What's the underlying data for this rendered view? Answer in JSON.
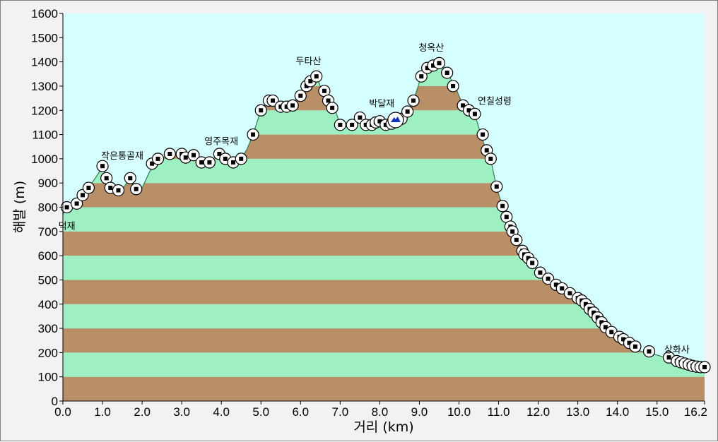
{
  "chart_data": {
    "type": "area",
    "xlabel": "거리  (km)",
    "ylabel": "해발 (m)",
    "xlim": [
      0,
      16.2
    ],
    "ylim": [
      0,
      1600
    ],
    "x_ticks": [
      "0.0",
      "1.0",
      "2.0",
      "3.0",
      "4.0",
      "5.0",
      "6.0",
      "7.0",
      "8.0",
      "9.0",
      "10.0",
      "11.0",
      "12.0",
      "13.0",
      "14.0",
      "15.0",
      "16.2"
    ],
    "y_ticks": [
      "0",
      "100",
      "200",
      "300",
      "400",
      "500",
      "600",
      "700",
      "800",
      "900",
      "1000",
      "1100",
      "1200",
      "1300",
      "1400",
      "1500",
      "1600"
    ],
    "band_colors": [
      "#b98f68",
      "#9ef0c2"
    ],
    "background_color": "#d6ffff",
    "profile": [
      [
        0.0,
        770
      ],
      [
        0.1,
        800
      ],
      [
        0.35,
        815
      ],
      [
        0.5,
        850
      ],
      [
        0.65,
        880
      ],
      [
        0.9,
        940
      ],
      [
        1.0,
        970
      ],
      [
        1.1,
        920
      ],
      [
        1.2,
        880
      ],
      [
        1.35,
        870
      ],
      [
        1.5,
        875
      ],
      [
        1.7,
        920
      ],
      [
        1.85,
        875
      ],
      [
        2.0,
        880
      ],
      [
        2.2,
        950
      ],
      [
        2.35,
        980
      ],
      [
        2.5,
        1000
      ],
      [
        2.75,
        1020
      ],
      [
        3.0,
        1030
      ],
      [
        3.2,
        1010
      ],
      [
        3.35,
        1015
      ],
      [
        3.5,
        990
      ],
      [
        3.7,
        985
      ],
      [
        3.9,
        1015
      ],
      [
        4.1,
        1000
      ],
      [
        4.3,
        985
      ],
      [
        4.5,
        1000
      ],
      [
        4.65,
        1040
      ],
      [
        4.8,
        1100
      ],
      [
        5.0,
        1200
      ],
      [
        5.2,
        1240
      ],
      [
        5.5,
        1215
      ],
      [
        5.8,
        1230
      ],
      [
        6.0,
        1260
      ],
      [
        6.2,
        1320
      ],
      [
        6.4,
        1340
      ],
      [
        6.55,
        1280
      ],
      [
        6.7,
        1240
      ],
      [
        6.85,
        1215
      ],
      [
        7.0,
        1140
      ],
      [
        7.3,
        1140
      ],
      [
        7.5,
        1165
      ],
      [
        7.7,
        1140
      ],
      [
        7.9,
        1140
      ],
      [
        8.1,
        1140
      ],
      [
        8.3,
        1145
      ],
      [
        8.5,
        1165
      ],
      [
        8.7,
        1190
      ],
      [
        8.85,
        1240
      ],
      [
        9.05,
        1340
      ],
      [
        9.25,
        1375
      ],
      [
        9.4,
        1390
      ],
      [
        9.55,
        1395
      ],
      [
        9.7,
        1355
      ],
      [
        9.9,
        1300
      ],
      [
        10.1,
        1220
      ],
      [
        10.25,
        1200
      ],
      [
        10.4,
        1185
      ],
      [
        10.55,
        1100
      ],
      [
        10.7,
        1030
      ],
      [
        10.8,
        1000
      ],
      [
        10.95,
        880
      ],
      [
        11.1,
        805
      ],
      [
        11.2,
        760
      ],
      [
        11.3,
        720
      ],
      [
        11.4,
        690
      ],
      [
        11.5,
        660
      ],
      [
        11.6,
        620
      ],
      [
        11.7,
        600
      ],
      [
        11.8,
        580
      ],
      [
        12.0,
        530
      ],
      [
        12.2,
        505
      ],
      [
        12.4,
        480
      ],
      [
        12.6,
        460
      ],
      [
        12.8,
        440
      ],
      [
        13.0,
        420
      ],
      [
        13.2,
        390
      ],
      [
        13.4,
        355
      ],
      [
        13.6,
        320
      ],
      [
        13.8,
        290
      ],
      [
        14.0,
        265
      ],
      [
        14.2,
        240
      ],
      [
        14.4,
        220
      ],
      [
        14.6,
        205
      ],
      [
        14.8,
        200
      ],
      [
        15.0,
        190
      ],
      [
        15.2,
        180
      ],
      [
        15.4,
        165
      ],
      [
        15.6,
        155
      ],
      [
        15.8,
        145
      ],
      [
        16.0,
        140
      ],
      [
        16.2,
        140
      ]
    ],
    "markers": [
      [
        0.1,
        800
      ],
      [
        0.35,
        815
      ],
      [
        0.5,
        850
      ],
      [
        0.65,
        880
      ],
      [
        1.0,
        970
      ],
      [
        1.1,
        920
      ],
      [
        1.2,
        880
      ],
      [
        1.4,
        870
      ],
      [
        1.7,
        920
      ],
      [
        1.85,
        875
      ],
      [
        2.25,
        980
      ],
      [
        2.4,
        1000
      ],
      [
        2.7,
        1020
      ],
      [
        3.0,
        1020
      ],
      [
        3.1,
        1005
      ],
      [
        3.3,
        1015
      ],
      [
        3.5,
        985
      ],
      [
        3.7,
        985
      ],
      [
        3.95,
        1020
      ],
      [
        4.1,
        1000
      ],
      [
        4.3,
        985
      ],
      [
        4.5,
        1000
      ],
      [
        4.8,
        1100
      ],
      [
        5.0,
        1200
      ],
      [
        5.2,
        1240
      ],
      [
        5.3,
        1240
      ],
      [
        5.5,
        1215
      ],
      [
        5.65,
        1215
      ],
      [
        5.8,
        1220
      ],
      [
        6.0,
        1260
      ],
      [
        6.15,
        1300
      ],
      [
        6.25,
        1320
      ],
      [
        6.4,
        1340
      ],
      [
        6.6,
        1280
      ],
      [
        6.7,
        1240
      ],
      [
        6.8,
        1210
      ],
      [
        7.0,
        1140
      ],
      [
        7.3,
        1140
      ],
      [
        7.5,
        1170
      ],
      [
        7.65,
        1140
      ],
      [
        7.8,
        1140
      ],
      [
        7.9,
        1150
      ],
      [
        8.0,
        1155
      ],
      [
        8.15,
        1140
      ],
      [
        8.3,
        1145
      ],
      [
        8.55,
        1165
      ],
      [
        8.7,
        1195
      ],
      [
        8.85,
        1240
      ],
      [
        9.05,
        1340
      ],
      [
        9.2,
        1375
      ],
      [
        9.35,
        1385
      ],
      [
        9.5,
        1395
      ],
      [
        9.7,
        1355
      ],
      [
        9.85,
        1300
      ],
      [
        10.1,
        1220
      ],
      [
        10.25,
        1200
      ],
      [
        10.4,
        1185
      ],
      [
        10.6,
        1100
      ],
      [
        10.7,
        1035
      ],
      [
        10.8,
        1000
      ],
      [
        10.95,
        885
      ],
      [
        11.1,
        805
      ],
      [
        11.2,
        760
      ],
      [
        11.3,
        720
      ],
      [
        11.35,
        700
      ],
      [
        11.45,
        665
      ],
      [
        11.6,
        620
      ],
      [
        11.65,
        605
      ],
      [
        11.75,
        590
      ],
      [
        11.85,
        570
      ],
      [
        12.05,
        530
      ],
      [
        12.25,
        505
      ],
      [
        12.45,
        480
      ],
      [
        12.6,
        465
      ],
      [
        12.8,
        445
      ],
      [
        13.0,
        425
      ],
      [
        13.1,
        415
      ],
      [
        13.2,
        400
      ],
      [
        13.3,
        380
      ],
      [
        13.4,
        365
      ],
      [
        13.5,
        345
      ],
      [
        13.6,
        325
      ],
      [
        13.7,
        305
      ],
      [
        13.85,
        285
      ],
      [
        14.05,
        265
      ],
      [
        14.15,
        255
      ],
      [
        14.3,
        240
      ],
      [
        14.45,
        225
      ],
      [
        14.8,
        205
      ],
      [
        15.3,
        180
      ],
      [
        15.5,
        165
      ],
      [
        15.6,
        160
      ],
      [
        15.7,
        155
      ],
      [
        15.8,
        150
      ],
      [
        15.9,
        145
      ],
      [
        16.0,
        142
      ],
      [
        16.1,
        140
      ],
      [
        16.2,
        140
      ]
    ],
    "summit_marker": [
      8.4,
      1160
    ],
    "annotations": [
      {
        "text": "덕재",
        "x": 0.1,
        "y": 710
      },
      {
        "text": "작은통골재",
        "x": 1.5,
        "y": 1000
      },
      {
        "text": "영주목재",
        "x": 4.0,
        "y": 1060
      },
      {
        "text": "두타산",
        "x": 6.2,
        "y": 1390
      },
      {
        "text": "박달재",
        "x": 8.05,
        "y": 1215
      },
      {
        "text": "청옥산",
        "x": 9.3,
        "y": 1445
      },
      {
        "text": "연칠성령",
        "x": 10.9,
        "y": 1225
      },
      {
        "text": "상화사",
        "x": 15.5,
        "y": 200
      }
    ]
  }
}
